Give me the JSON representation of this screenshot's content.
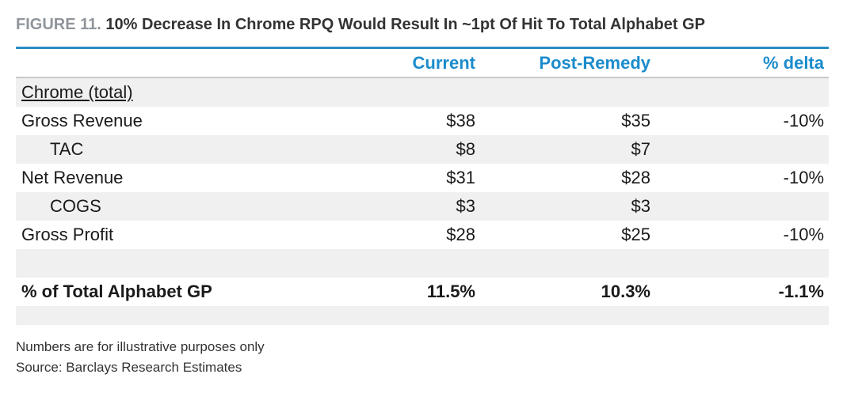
{
  "figure": {
    "label": "FIGURE 11.",
    "title": "10% Decrease In Chrome RPQ Would Result In ~1pt Of Hit To Total Alphabet GP"
  },
  "table": {
    "headers": {
      "label": "",
      "current": "Current",
      "post_remedy": "Post-Remedy",
      "delta": "% delta"
    },
    "rows": [
      {
        "label": "Chrome (total)",
        "current": "",
        "post_remedy": "",
        "delta": ""
      },
      {
        "label": "Gross Revenue",
        "current": "$38",
        "post_remedy": "$35",
        "delta": "-10%"
      },
      {
        "label": "TAC",
        "current": "$8",
        "post_remedy": "$7",
        "delta": ""
      },
      {
        "label": "Net Revenue",
        "current": "$31",
        "post_remedy": "$28",
        "delta": "-10%"
      },
      {
        "label": "COGS",
        "current": "$3",
        "post_remedy": "$3",
        "delta": ""
      },
      {
        "label": "Gross Profit",
        "current": "$28",
        "post_remedy": "$25",
        "delta": "-10%"
      },
      {
        "label": "",
        "current": "",
        "post_remedy": "",
        "delta": ""
      },
      {
        "label": "% of Total Alphabet GP",
        "current": "11.5%",
        "post_remedy": "10.3%",
        "delta": "-1.1%"
      },
      {
        "label": "",
        "current": "",
        "post_remedy": "",
        "delta": ""
      }
    ]
  },
  "footnotes": {
    "note": "Numbers are for illustrative purposes only",
    "source": "Source: Barclays Research Estimates"
  },
  "colors": {
    "header_text": "#1b8ccc",
    "top_rule": "#2b8cc4",
    "row_shade": "#f0f0f0",
    "figure_label": "#8f959b"
  }
}
